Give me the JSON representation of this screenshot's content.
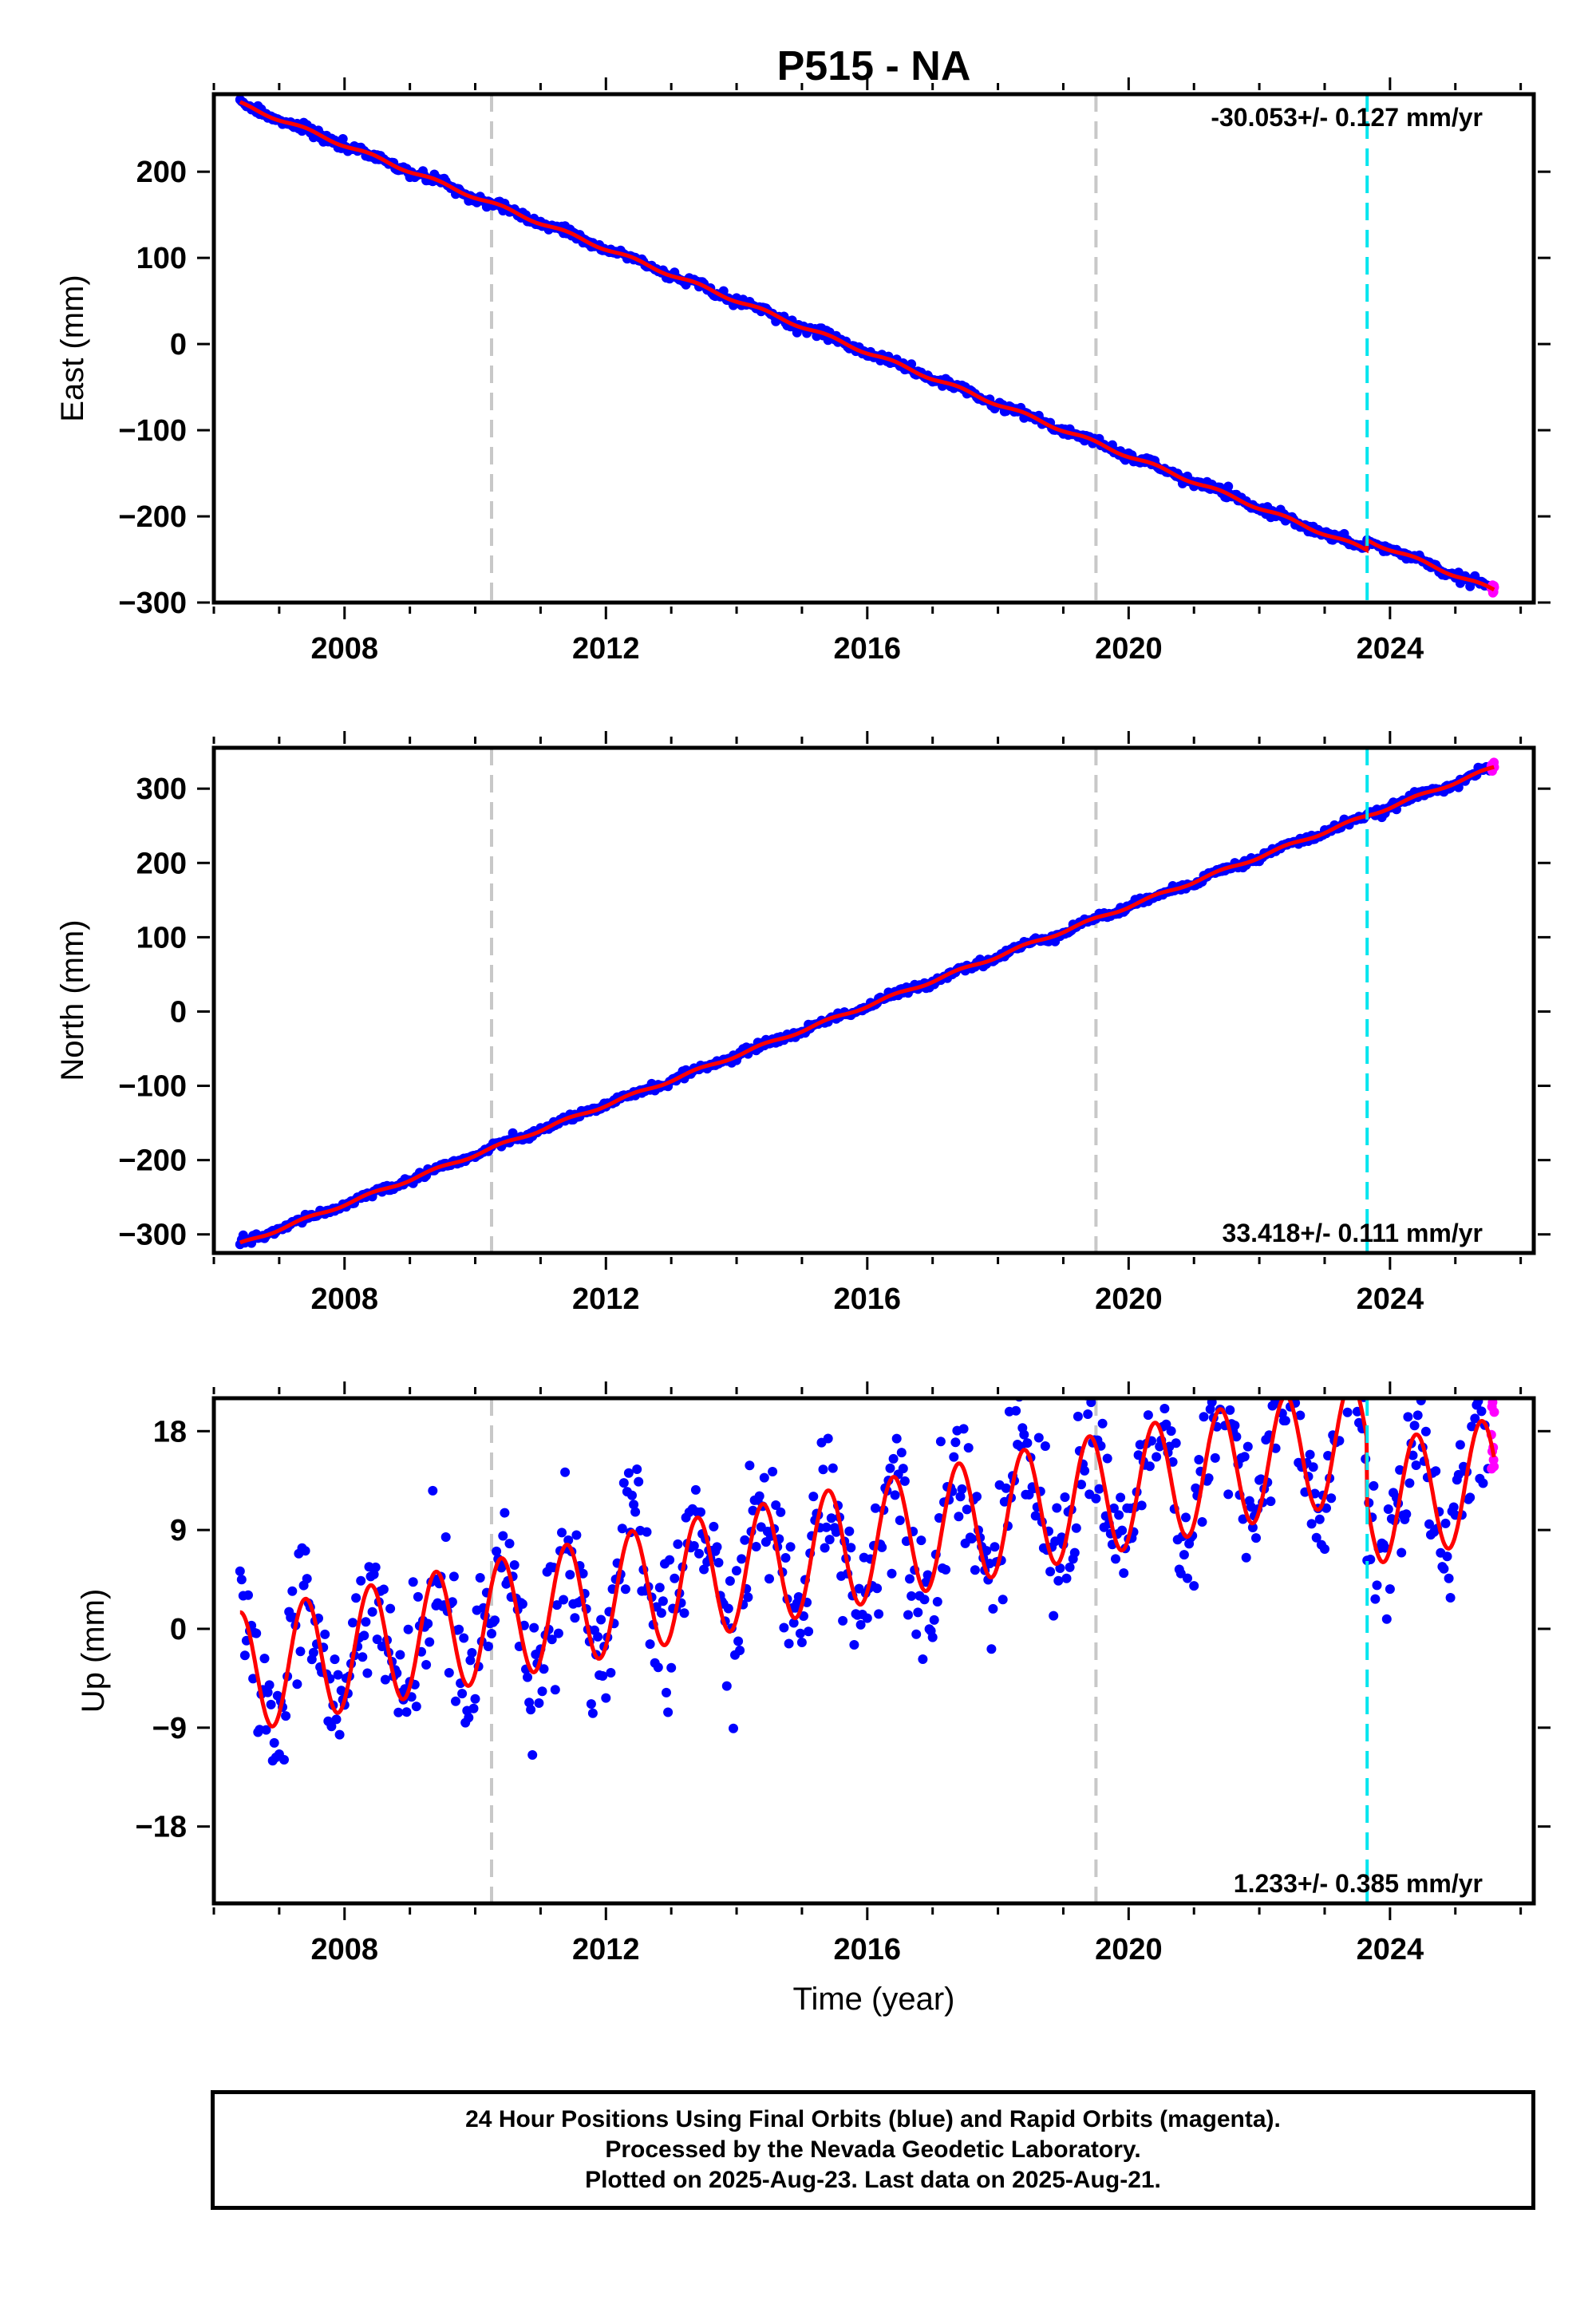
{
  "title": "P515 - NA",
  "xlabel": "Time (year)",
  "colors": {
    "final_points": "#0000ff",
    "rapid_points": "#ff00ff",
    "model_line": "#ff0000",
    "equipment_change_line": "#c8c8c8",
    "event_line": "#00e5ee"
  },
  "footer": {
    "line1": "24 Hour Positions Using Final Orbits (blue) and Rapid Orbits (magenta).",
    "line2": "Processed by the Nevada Geodetic Laboratory.",
    "line3": "Plotted on 2025-Aug-23. Last data on 2025-Aug-21."
  },
  "chart_data": [
    {
      "type": "scatter",
      "component": "east",
      "ylabel": "East (mm)",
      "xlim": [
        2006.0,
        2026.2
      ],
      "ylim": [
        -300,
        290
      ],
      "xticks": [
        2008,
        2012,
        2016,
        2020,
        2024
      ],
      "yticks": [
        -300,
        -200,
        -100,
        0,
        100,
        200
      ],
      "rate_label": "-30.053+/- 0.127 mm/yr",
      "rate_position": "top-right",
      "data_start": 2006.4,
      "data_end": 2025.6,
      "rapid_start": 2025.55,
      "velocity_mm_per_yr": -30.053,
      "value_at_start": 279,
      "offset_at_event": 12,
      "seasonal_amplitude": 2,
      "noise_sd": 2.5,
      "grey_lines": [
        2010.25,
        2019.5
      ],
      "cyan_lines": [
        2023.65
      ]
    },
    {
      "type": "scatter",
      "component": "north",
      "ylabel": "North (mm)",
      "xlim": [
        2006.0,
        2026.2
      ],
      "ylim": [
        -325,
        355
      ],
      "xticks": [
        2008,
        2012,
        2016,
        2020,
        2024
      ],
      "yticks": [
        -300,
        -200,
        -100,
        0,
        100,
        200,
        300
      ],
      "rate_label": "33.418+/- 0.111 mm/yr",
      "rate_position": "bottom-right",
      "data_start": 2006.4,
      "data_end": 2025.6,
      "rapid_start": 2025.55,
      "velocity_mm_per_yr": 33.418,
      "value_at_start": -313,
      "offset_at_event": 0,
      "seasonal_amplitude": 2,
      "noise_sd": 2.5,
      "grey_lines": [
        2010.25,
        2019.5
      ],
      "cyan_lines": [
        2023.65
      ]
    },
    {
      "type": "scatter",
      "component": "up",
      "ylabel": "Up (mm)",
      "xlim": [
        2006.0,
        2026.2
      ],
      "ylim": [
        -25,
        21
      ],
      "xticks": [
        2008,
        2012,
        2016,
        2020,
        2024
      ],
      "yticks": [
        -18,
        -9,
        0,
        9,
        18
      ],
      "rate_label": "1.233+/- 0.385 mm/yr",
      "rate_position": "bottom-right",
      "data_start": 2006.4,
      "data_end": 2025.6,
      "rapid_start": 2025.55,
      "velocity_mm_per_yr": 1.233,
      "value_at_start": -4,
      "offset_at_event": -6,
      "seasonal_amplitude": 5.5,
      "noise_sd": 3.2,
      "grey_lines": [
        2010.25,
        2019.5
      ],
      "cyan_lines": [
        2023.65
      ]
    }
  ]
}
